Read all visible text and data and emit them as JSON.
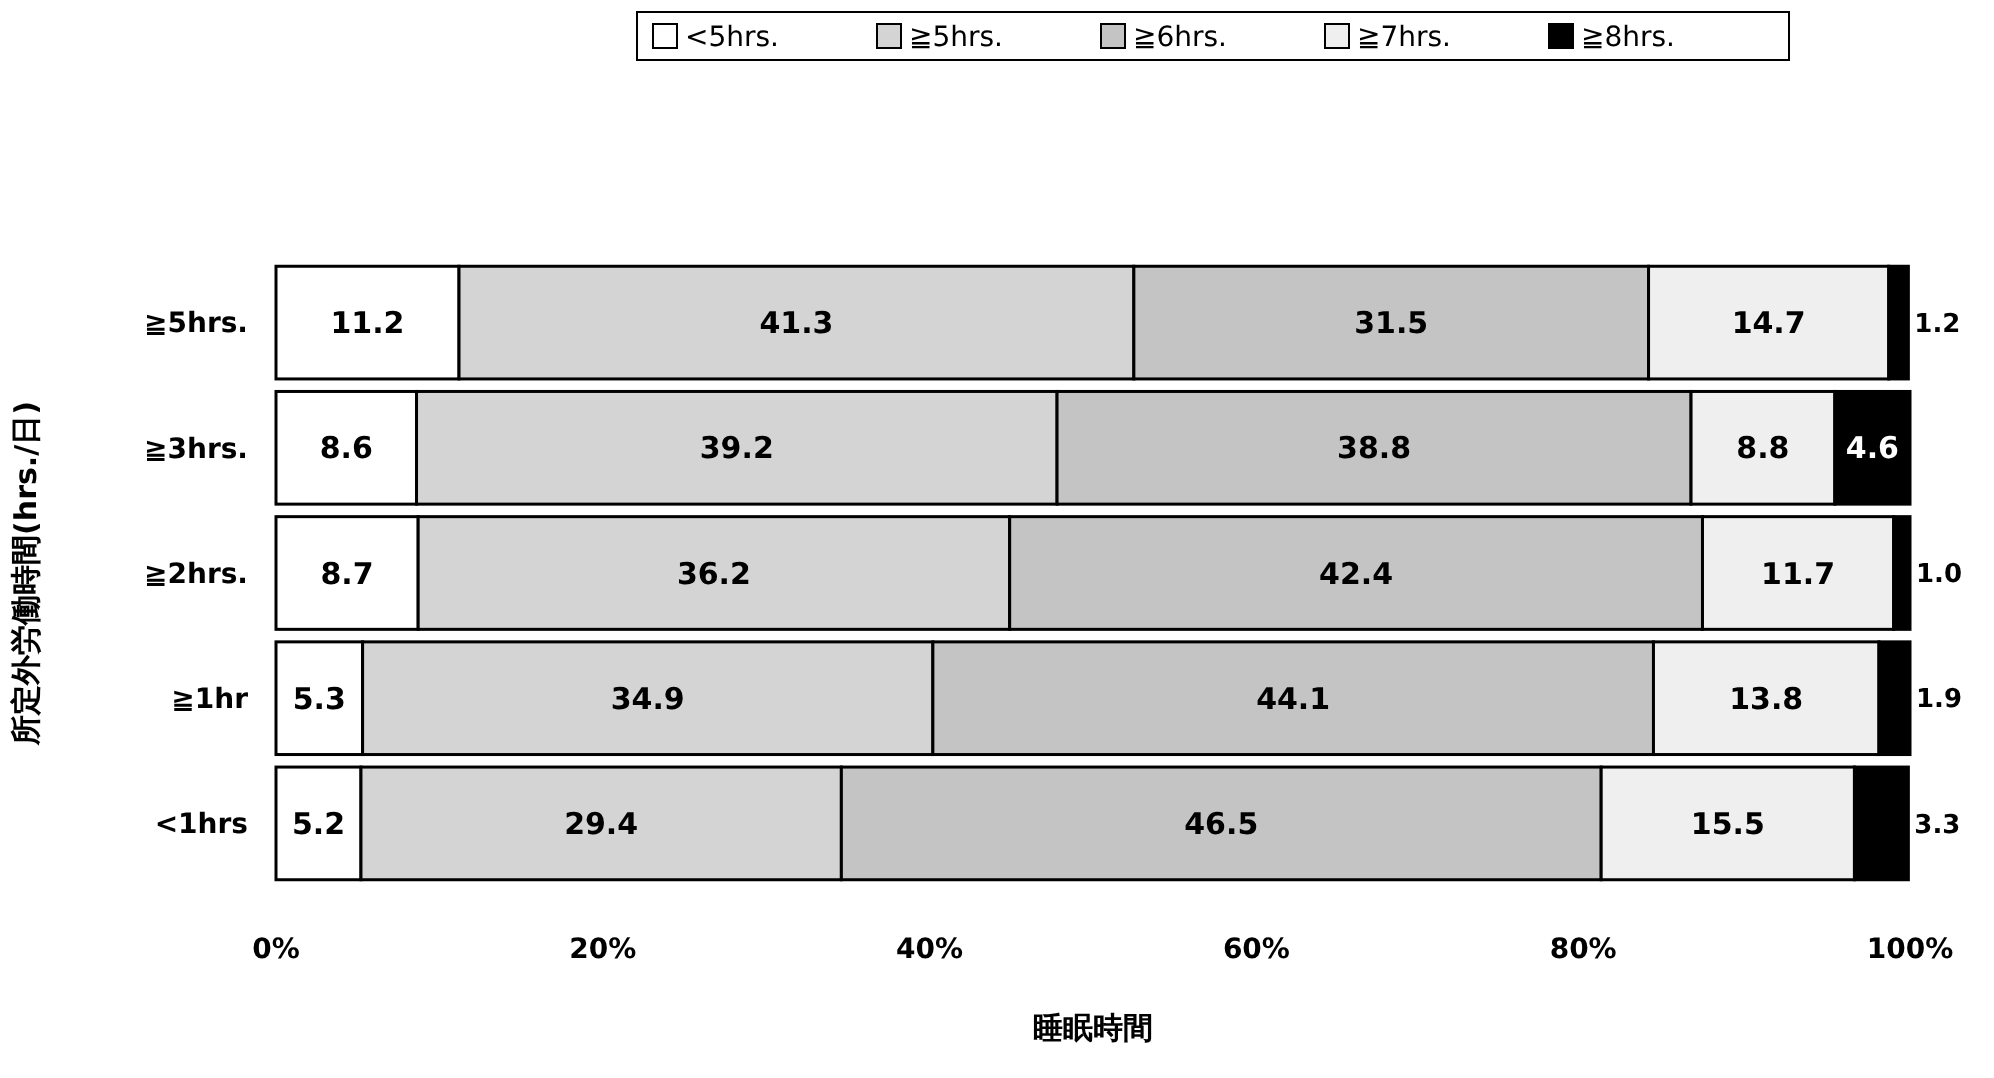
{
  "chart_data": {
    "type": "bar",
    "orientation": "horizontal",
    "stacked": true,
    "legend": "top",
    "grid": false,
    "xlabel": "睡眠時間",
    "ylabel": "所定外労働時間(hrs./日)",
    "categories": [
      "≧5hrs.",
      "≧3hrs.",
      "≧2hrs.",
      "≧1hr",
      "<1hrs"
    ],
    "xlim": [
      0,
      100
    ],
    "xticks": [
      {
        "value": 0,
        "label": "0%"
      },
      {
        "value": 20,
        "label": "20%"
      },
      {
        "value": 40,
        "label": "40%"
      },
      {
        "value": 60,
        "label": "60%"
      },
      {
        "value": 80,
        "label": "80%"
      },
      {
        "value": 100,
        "label": "100%"
      }
    ],
    "series": [
      {
        "name": "<5hrs.",
        "color": "#ffffff",
        "values": [
          11.2,
          8.6,
          8.7,
          5.3,
          5.2
        ],
        "value_labels": [
          "11.2",
          "8.6",
          "8.7",
          "5.3",
          "5.2"
        ]
      },
      {
        "name": "≧5hrs.",
        "color": "#d4d4d4",
        "values": [
          41.3,
          39.2,
          36.2,
          34.9,
          29.4
        ],
        "value_labels": [
          "41.3",
          "39.2",
          "36.2",
          "34.9",
          "29.4"
        ]
      },
      {
        "name": "≧6hrs.",
        "color": "#c4c4c4",
        "values": [
          31.5,
          38.8,
          42.4,
          44.1,
          46.5
        ],
        "value_labels": [
          "31.5",
          "38.8",
          "42.4",
          "44.1",
          "46.5"
        ]
      },
      {
        "name": "≧7hrs.",
        "color": "#efefef",
        "values": [
          14.7,
          8.8,
          11.7,
          13.8,
          15.5
        ],
        "value_labels": [
          "14.7",
          "8.8",
          "11.7",
          "13.8",
          "15.5"
        ]
      },
      {
        "name": "≧8hrs.",
        "color": "#000000",
        "values": [
          1.2,
          4.6,
          1.0,
          1.9,
          3.3
        ],
        "value_labels": [
          "1.2",
          "4.6",
          "1.0",
          "1.9",
          "3.3"
        ]
      }
    ]
  }
}
